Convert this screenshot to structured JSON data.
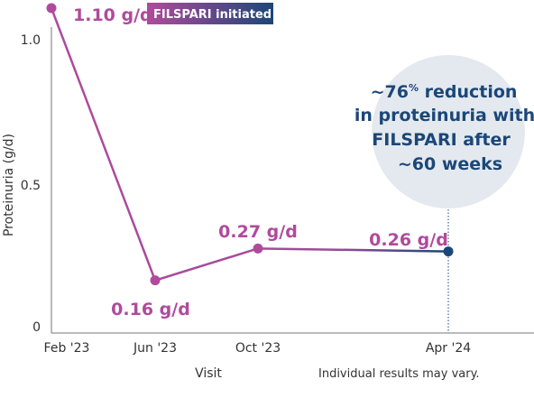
{
  "chart_data": {
    "type": "line",
    "x": [
      "Feb '23",
      "Jun '23",
      "Oct '23",
      "Apr '24"
    ],
    "series": [
      {
        "values": [
          1.1,
          0.16,
          0.27,
          0.26
        ]
      }
    ],
    "data_labels": [
      "1.10 g/d",
      "0.16 g/d",
      "0.27 g/d",
      "0.26 g/d"
    ],
    "xlabel": "Visit",
    "ylabel": "Proteinuria (g/d)",
    "yticks": [
      "0",
      "0.5",
      "1.0"
    ],
    "ylim": [
      0,
      1.1
    ],
    "grid": false,
    "badge": "FILSPARI initiated",
    "callout": {
      "line1_pre": "~76",
      "line1_sup": "%",
      "line1_post": " reduction",
      "line2": "in proteinuria with",
      "line3": "FILSPARI after",
      "line4": "~60 weeks"
    },
    "note": "Individual results may vary.",
    "colors": {
      "magenta": "#b04a9c",
      "navy": "#1b4778",
      "callout_bg": "#e4e9ef"
    }
  }
}
